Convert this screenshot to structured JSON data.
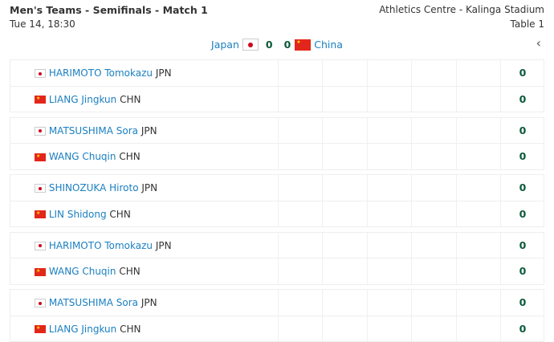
{
  "header": {
    "title": "Men's Teams - Semifinals - Match 1",
    "datetime": "Tue 14, 18:30",
    "venue": "Athletics Centre - Kalinga Stadium",
    "table": "Table 1"
  },
  "score": {
    "home": "Japan",
    "home_score": "0",
    "away_score": "0",
    "away": "China",
    "collapse_icon": "chevron-left-icon"
  },
  "colors": {
    "link": "#1a7fc1",
    "score": "#0b5a3a"
  },
  "matches": [
    {
      "p1": {
        "name": "HARIMOTO Tomokazu",
        "noc": "JPN",
        "score": "0"
      },
      "p2": {
        "name": "LIANG Jingkun",
        "noc": "CHN",
        "score": "0"
      }
    },
    {
      "p1": {
        "name": "MATSUSHIMA Sora",
        "noc": "JPN",
        "score": "0"
      },
      "p2": {
        "name": "WANG Chuqin",
        "noc": "CHN",
        "score": "0"
      }
    },
    {
      "p1": {
        "name": "SHINOZUKA Hiroto",
        "noc": "JPN",
        "score": "0"
      },
      "p2": {
        "name": "LIN Shidong",
        "noc": "CHN",
        "score": "0"
      }
    },
    {
      "p1": {
        "name": "HARIMOTO Tomokazu",
        "noc": "JPN",
        "score": "0"
      },
      "p2": {
        "name": "WANG Chuqin",
        "noc": "CHN",
        "score": "0"
      }
    },
    {
      "p1": {
        "name": "MATSUSHIMA Sora",
        "noc": "JPN",
        "score": "0"
      },
      "p2": {
        "name": "LIANG Jingkun",
        "noc": "CHN",
        "score": "0"
      }
    }
  ]
}
